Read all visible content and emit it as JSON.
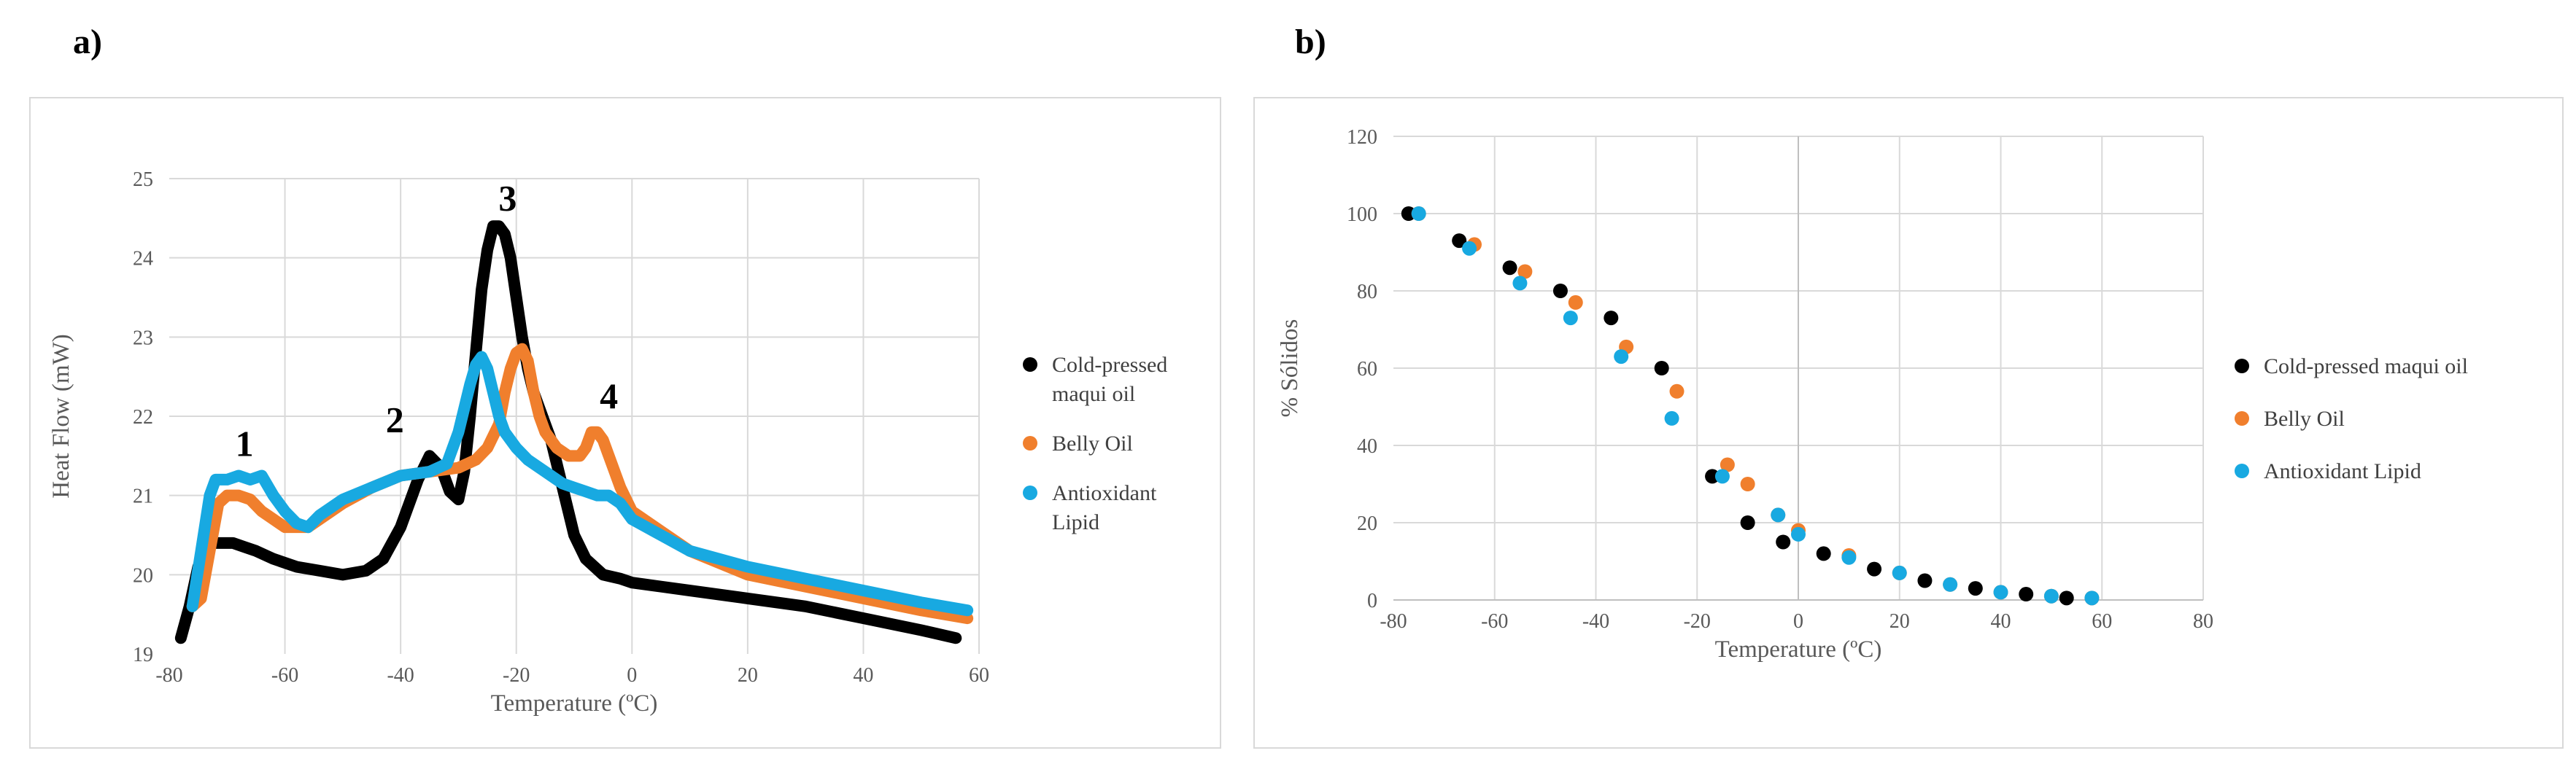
{
  "panel_labels": {
    "a": "a)",
    "b": "b)"
  },
  "chart_data": [
    {
      "id": "a",
      "type": "line",
      "title": "",
      "xlabel": "Temperature (ºC)",
      "ylabel": "Heat Flow (mW)",
      "xlim": [
        -80,
        60
      ],
      "ylim": [
        19,
        25
      ],
      "xticks": [
        -80,
        -60,
        -40,
        -20,
        0,
        20,
        40,
        60
      ],
      "yticks": [
        19,
        20,
        21,
        22,
        23,
        24,
        25
      ],
      "grid": true,
      "legend": "right",
      "annotations": [
        {
          "text": "1",
          "x": -67,
          "y": 21.5
        },
        {
          "text": "2",
          "x": -41,
          "y": 21.8
        },
        {
          "text": "3",
          "x": -21.5,
          "y": 24.6
        },
        {
          "text": "4",
          "x": -4,
          "y": 22.1
        }
      ],
      "series": [
        {
          "name": "Cold-pressed maqui oil",
          "legend_lines": [
            "Cold-pressed",
            "maqui oil"
          ],
          "color": "#000000",
          "x": [
            -78,
            -76.5,
            -75,
            -73,
            -71,
            -69,
            -67,
            -65,
            -62,
            -58,
            -54,
            -50,
            -46,
            -43,
            -40,
            -37,
            -35,
            -33,
            -31.5,
            -30,
            -29,
            -28,
            -27,
            -26,
            -25,
            -24,
            -23,
            -22,
            -21,
            -20,
            -19,
            -18,
            -17,
            -16,
            -15,
            -14,
            -13,
            -12,
            -11,
            -10,
            -8,
            -5,
            -2,
            0,
            5,
            10,
            20,
            30,
            40,
            50,
            56
          ],
          "y": [
            19.2,
            19.6,
            20.1,
            20.4,
            20.4,
            20.4,
            20.35,
            20.3,
            20.2,
            20.1,
            20.05,
            20.0,
            20.05,
            20.2,
            20.6,
            21.2,
            21.5,
            21.35,
            21.05,
            20.95,
            21.3,
            22.0,
            22.8,
            23.6,
            24.1,
            24.4,
            24.4,
            24.3,
            24.0,
            23.5,
            23.0,
            22.6,
            22.3,
            22.1,
            21.9,
            21.7,
            21.4,
            21.1,
            20.8,
            20.5,
            20.2,
            20.0,
            19.95,
            19.9,
            19.85,
            19.8,
            19.7,
            19.6,
            19.45,
            19.3,
            19.2
          ]
        },
        {
          "name": "Belly Oil",
          "legend_lines": [
            "Belly Oil"
          ],
          "color": "#f07f2d",
          "x": [
            -76,
            -74.5,
            -73,
            -71.5,
            -70,
            -68,
            -66,
            -64,
            -62,
            -60,
            -58,
            -56,
            -54,
            -50,
            -45,
            -40,
            -35,
            -30,
            -27,
            -25,
            -23,
            -22,
            -21,
            -20,
            -19,
            -18,
            -17,
            -16,
            -15,
            -14,
            -13,
            -12,
            -11,
            -10,
            -9,
            -8,
            -7,
            -6,
            -5,
            -4,
            -3,
            -2,
            -1,
            0,
            2,
            5,
            10,
            20,
            30,
            40,
            50,
            58
          ],
          "y": [
            19.6,
            19.7,
            20.3,
            20.9,
            21.0,
            21.0,
            20.95,
            20.8,
            20.7,
            20.6,
            20.6,
            20.6,
            20.7,
            20.9,
            21.1,
            21.25,
            21.3,
            21.35,
            21.45,
            21.6,
            21.9,
            22.3,
            22.6,
            22.8,
            22.85,
            22.7,
            22.3,
            22.0,
            21.8,
            21.7,
            21.6,
            21.55,
            21.5,
            21.5,
            21.5,
            21.6,
            21.8,
            21.8,
            21.7,
            21.5,
            21.3,
            21.1,
            20.95,
            20.8,
            20.7,
            20.55,
            20.3,
            20.0,
            19.85,
            19.7,
            19.55,
            19.45
          ]
        },
        {
          "name": "Antioxidant Lipid",
          "legend_lines": [
            "Antioxidant",
            "Lipid"
          ],
          "color": "#18a9e1",
          "x": [
            -76,
            -74.5,
            -73,
            -72,
            -70,
            -68,
            -66,
            -64,
            -62,
            -60,
            -58,
            -56,
            -54,
            -50,
            -45,
            -40,
            -35,
            -32,
            -30,
            -29,
            -28,
            -27,
            -26,
            -25,
            -24,
            -23,
            -22,
            -21,
            -20,
            -18,
            -16,
            -14,
            -12,
            -10,
            -8,
            -6,
            -4,
            -2,
            0,
            5,
            10,
            20,
            30,
            40,
            50,
            58
          ],
          "y": [
            19.6,
            20.3,
            21.0,
            21.2,
            21.2,
            21.25,
            21.2,
            21.25,
            21.0,
            20.8,
            20.65,
            20.6,
            20.75,
            20.95,
            21.1,
            21.25,
            21.3,
            21.4,
            21.8,
            22.1,
            22.4,
            22.65,
            22.75,
            22.6,
            22.3,
            22.0,
            21.8,
            21.7,
            21.6,
            21.45,
            21.35,
            21.25,
            21.15,
            21.1,
            21.05,
            21.0,
            21.0,
            20.9,
            20.7,
            20.5,
            20.3,
            20.1,
            19.95,
            19.8,
            19.65,
            19.55
          ]
        }
      ]
    },
    {
      "id": "b",
      "type": "scatter",
      "title": "",
      "xlabel": "Temperature (ºC)",
      "ylabel": "% Sólidos",
      "xlim": [
        -80,
        80
      ],
      "ylim": [
        0,
        120
      ],
      "xticks": [
        -80,
        -60,
        -40,
        -20,
        0,
        20,
        40,
        60,
        80
      ],
      "yticks": [
        0,
        20,
        40,
        60,
        80,
        100,
        120
      ],
      "grid": true,
      "legend": "right",
      "series": [
        {
          "name": "Cold-pressed maqui oil",
          "color": "#000000",
          "x": [
            -77,
            -67,
            -57,
            -47,
            -37,
            -27,
            -17,
            -10,
            -3,
            5,
            15,
            25,
            35,
            45,
            53
          ],
          "y": [
            100,
            93,
            86,
            80,
            73,
            60,
            32,
            20,
            15,
            12,
            8,
            5,
            3,
            1.5,
            0.5
          ]
        },
        {
          "name": "Belly Oil",
          "color": "#f07f2d",
          "x": [
            -75,
            -64,
            -54,
            -44,
            -34,
            -24,
            -14,
            -10,
            -4,
            0,
            10,
            20,
            30,
            40,
            50,
            58
          ],
          "y": [
            100,
            92,
            85,
            77,
            65.5,
            54,
            35,
            30,
            22,
            18,
            11.5,
            7,
            4,
            2,
            1,
            0.5
          ]
        },
        {
          "name": "Antioxidant Lipid",
          "color": "#18a9e1",
          "x": [
            -75,
            -65,
            -55,
            -45,
            -35,
            -25,
            -15,
            -4,
            0,
            10,
            20,
            30,
            40,
            50,
            58
          ],
          "y": [
            100,
            91,
            82,
            73,
            63,
            47,
            32,
            22,
            17,
            11,
            7,
            4,
            2,
            1,
            0.5
          ]
        }
      ]
    }
  ]
}
